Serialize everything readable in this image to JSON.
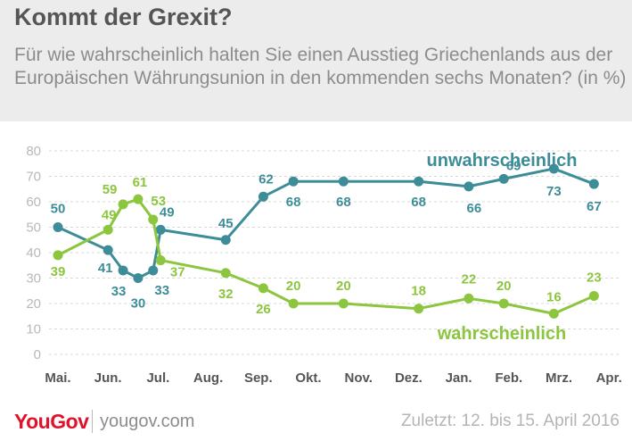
{
  "header": {
    "title": "Kommt der Grexit?",
    "subtitle": "Für wie wahrscheinlich halten Sie einen Ausstieg Griechenlands aus der Europäischen Währungsunion in den kommenden sechs Monaten? (in %)"
  },
  "footer": {
    "logo": "YouGov",
    "url": "yougov.com",
    "date_note": "Zuletzt: 12. bis 15. April 2016"
  },
  "colors": {
    "unwahrscheinlich": "#3d8d98",
    "wahrscheinlich": "#8cc63e",
    "grid": "#d9d9d9",
    "tick": "#b8b8b8",
    "month": "#555555"
  },
  "chart_data": {
    "type": "line",
    "ylim": [
      0,
      80
    ],
    "yticks": [
      0,
      10,
      20,
      30,
      40,
      50,
      60,
      70,
      80
    ],
    "month_labels": [
      "Mai.",
      "Jun.",
      "Jul.",
      "Aug.",
      "Sep.",
      "Okt.",
      "Nov.",
      "Dez.",
      "Jan.",
      "Feb.",
      "Mrz.",
      "Apr."
    ],
    "grid": true,
    "series": [
      {
        "name": "unwahrscheinlich",
        "x": [
          0,
          1,
          1.3,
          1.6,
          1.9,
          2.05,
          3.35,
          4.1,
          4.7,
          5.7,
          7.2,
          8.2,
          8.9,
          9.9,
          10.7
        ],
        "values": [
          50,
          41,
          33,
          30,
          33,
          49,
          45,
          62,
          68,
          68,
          68,
          66,
          69,
          73,
          67
        ]
      },
      {
        "name": "wahrscheinlich",
        "x": [
          0,
          1,
          1.3,
          1.6,
          1.9,
          2.05,
          3.35,
          4.1,
          4.7,
          5.7,
          7.2,
          8.2,
          8.9,
          9.9,
          10.7
        ],
        "values": [
          39,
          49,
          59,
          61,
          53,
          37,
          32,
          26,
          20,
          20,
          18,
          22,
          20,
          16,
          23
        ]
      }
    ]
  }
}
